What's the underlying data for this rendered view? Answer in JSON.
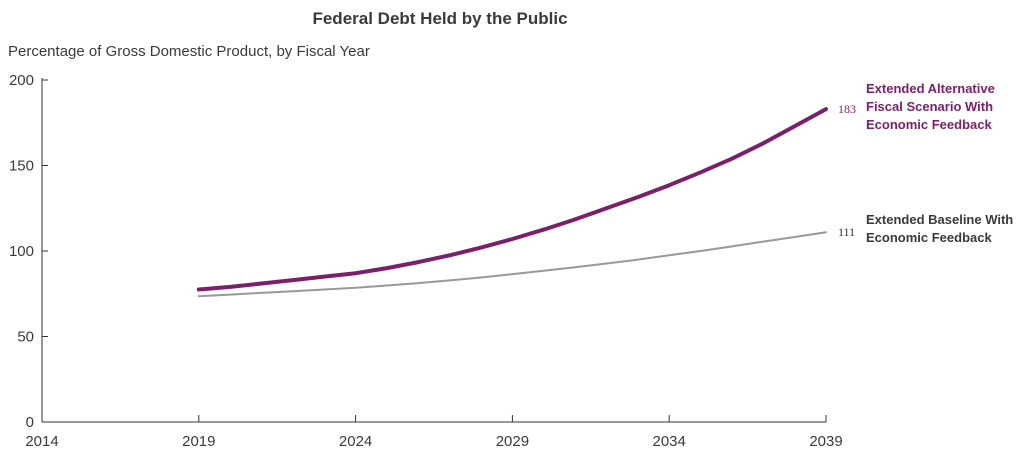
{
  "chart_data": {
    "type": "line",
    "title": "Federal Debt Held by the Public",
    "subtitle": "Percentage of Gross Domestic Product, by Fiscal Year",
    "xlabel": "",
    "ylabel": "",
    "xlim": [
      2014,
      2039
    ],
    "ylim": [
      0,
      200
    ],
    "x_ticks": [
      2014,
      2019,
      2024,
      2029,
      2034,
      2039
    ],
    "y_ticks": [
      0,
      50,
      100,
      150,
      200
    ],
    "grid": false,
    "legend": "direct labels at line ends (right)",
    "series": [
      {
        "name": "Extended Alternative Fiscal Scenario With Economic Feedback",
        "label_lines": [
          "Extended Alternative",
          "Fiscal Scenario With",
          "Economic Feedback"
        ],
        "color": "#7b1f6a",
        "end_label": "183",
        "x": [
          2019,
          2020,
          2021,
          2022,
          2023,
          2024,
          2025,
          2026,
          2027,
          2028,
          2029,
          2030,
          2031,
          2032,
          2033,
          2034,
          2035,
          2036,
          2037,
          2038,
          2039
        ],
        "values": [
          77.5,
          79,
          81,
          83,
          85,
          87,
          90,
          93.5,
          97.5,
          102,
          107,
          112.5,
          118.5,
          125,
          131.5,
          138.5,
          146,
          154,
          163,
          173,
          183
        ]
      },
      {
        "name": "Extended Baseline With Economic Feedback",
        "label_lines": [
          "Extended Baseline With",
          "Economic Feedback"
        ],
        "color": "#999999",
        "end_label": "111",
        "x": [
          2019,
          2020,
          2021,
          2022,
          2023,
          2024,
          2025,
          2026,
          2027,
          2028,
          2029,
          2030,
          2031,
          2032,
          2033,
          2034,
          2035,
          2036,
          2037,
          2038,
          2039
        ],
        "values": [
          73.5,
          74.5,
          75.5,
          76.5,
          77.5,
          78.5,
          79.8,
          81.2,
          82.8,
          84.5,
          86.5,
          88.5,
          90.5,
          92.7,
          95,
          97.5,
          100,
          102.7,
          105.5,
          108.2,
          111
        ]
      }
    ]
  }
}
